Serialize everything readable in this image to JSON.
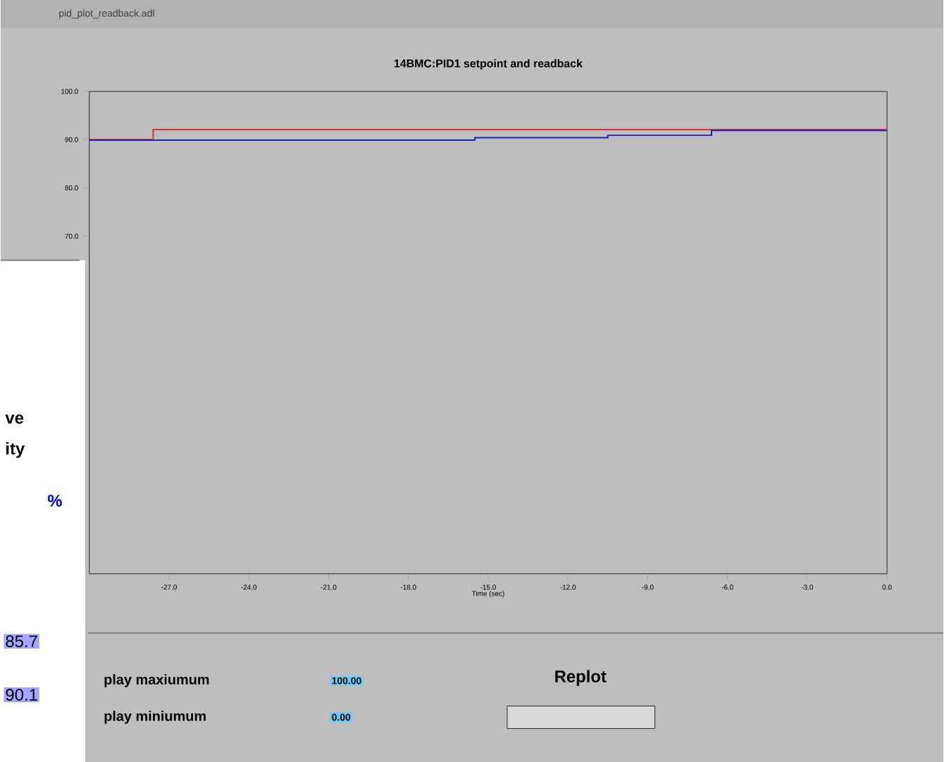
{
  "chart_data": {
    "type": "line",
    "title": "14BMC:PID1 setpoint and readback",
    "xlabel": "Time (sec)",
    "xlim": [
      -30,
      0
    ],
    "xticks": [
      {
        "value": -27,
        "label": "-27.0"
      },
      {
        "value": -24,
        "label": "-24.0"
      },
      {
        "value": -21,
        "label": "-21.0"
      },
      {
        "value": -18,
        "label": "-18.0"
      },
      {
        "value": -15,
        "label": "-15.0"
      },
      {
        "value": -12,
        "label": "-12.0"
      },
      {
        "value": -9,
        "label": "-9.0"
      },
      {
        "value": -6,
        "label": "-6.0"
      },
      {
        "value": -3,
        "label": "-3.0"
      },
      {
        "value": 0,
        "label": "0.0"
      }
    ],
    "ylim": [
      0,
      100
    ],
    "yticks": [
      {
        "value": 70,
        "label": "70.0"
      },
      {
        "value": 80,
        "label": "80.0"
      },
      {
        "value": 90,
        "label": "90.0"
      },
      {
        "value": 100,
        "label": "100.0"
      }
    ],
    "series": [
      {
        "color": "#e03030",
        "x": [
          -30,
          -27.6,
          -27.6,
          0
        ],
        "values": [
          90,
          90,
          92.1,
          92.1
        ]
      },
      {
        "color": "#2020c0",
        "x": [
          -30,
          -15.5,
          -15.5,
          -10.5,
          -10.5,
          -6.6,
          -6.6,
          0
        ],
        "values": [
          89.9,
          89.9,
          90.4,
          90.4,
          90.9,
          90.9,
          91.9,
          91.9
        ]
      }
    ],
    "annotations": [
      "pid_plot_readback.adl",
      "play maxiumum",
      "100.00",
      "play miniumum",
      "0.00",
      "Replot",
      "ve",
      "ity",
      "%",
      "85.7",
      "90.1"
    ]
  }
}
